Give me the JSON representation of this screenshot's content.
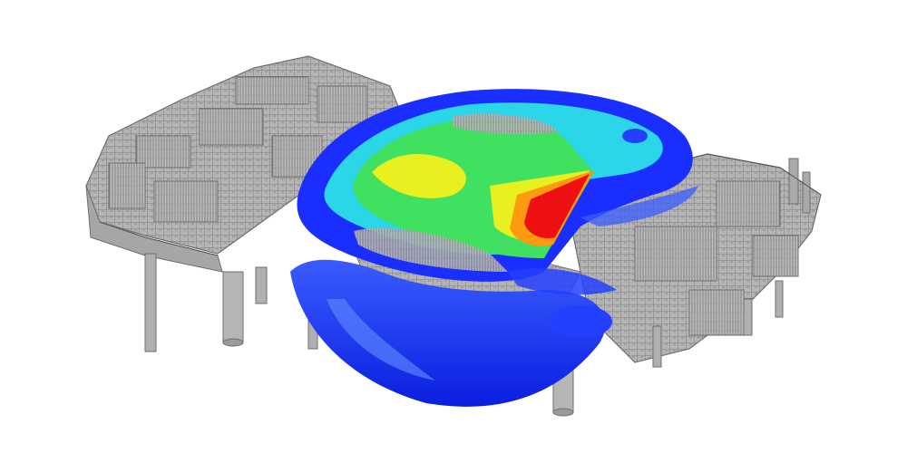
{
  "scene": {
    "background": "#ffffff",
    "subject": "offshore-platform-gas-dispersion-cfd",
    "palette": {
      "steel": "#9a9a9a",
      "steel_dark": "#6e6e6e",
      "steel_light": "#c8c8c8",
      "plume_blue": "#1a2fff",
      "plume_blue_light": "#4a7bff",
      "plume_cyan": "#2ad6e8",
      "plume_green": "#40e060",
      "plume_yellow": "#e8f020",
      "plume_orange": "#ff9a10",
      "plume_red": "#ee1010"
    }
  }
}
